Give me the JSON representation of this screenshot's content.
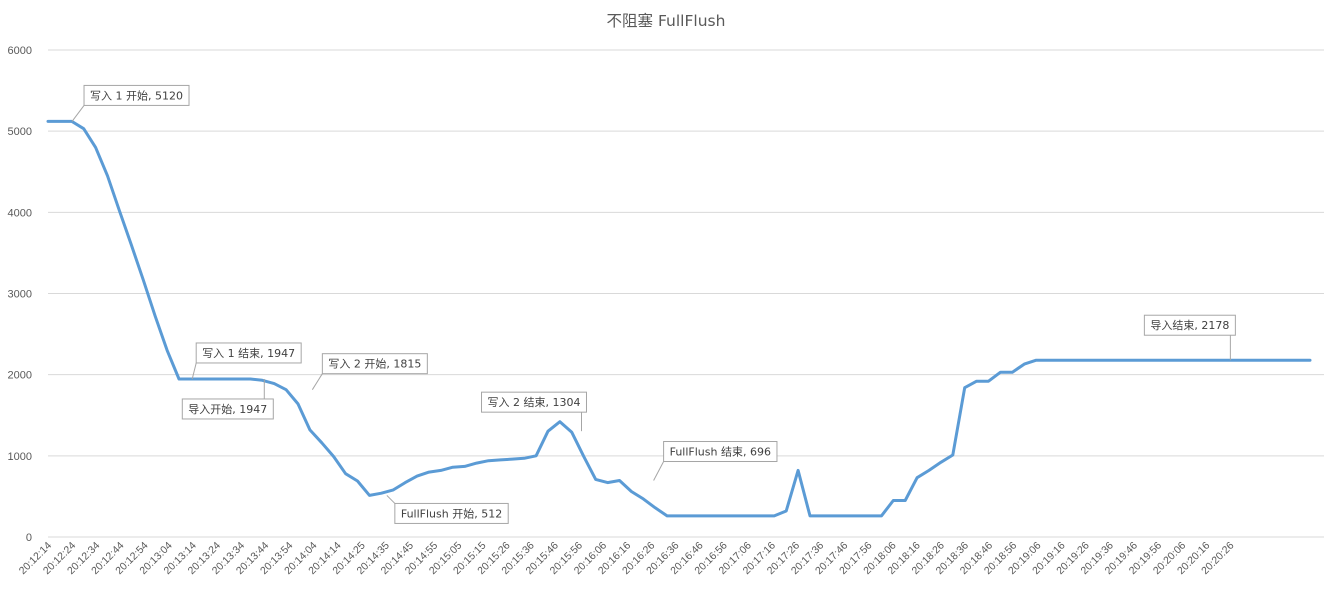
{
  "chart_data": {
    "type": "line",
    "title": "不阻塞 FullFlush",
    "xlabel": "",
    "ylabel": "",
    "ylim": [
      0,
      6000
    ],
    "yticks": [
      "0",
      "1000",
      "2000",
      "3000",
      "4000",
      "5000",
      "6000"
    ],
    "grid": true,
    "legend": "none",
    "x_tick_labels": [
      "20:12:14",
      "20:12:24",
      "20:12:34",
      "20:12:44",
      "20:12:54",
      "20:13:04",
      "20:13:14",
      "20:13:24",
      "20:13:34",
      "20:13:44",
      "20:13:54",
      "20:14:04",
      "20:14:14",
      "20:14:25",
      "20:14:35",
      "20:14:45",
      "20:14:55",
      "20:15:05",
      "20:15:15",
      "20:15:26",
      "20:15:36",
      "20:15:46",
      "20:15:56",
      "20:16:06",
      "20:16:16",
      "20:16:26",
      "20:16:36",
      "20:16:46",
      "20:16:56",
      "20:17:06",
      "20:17:16",
      "20:17:26",
      "20:17:36",
      "20:17:46",
      "20:17:56",
      "20:18:06",
      "20:18:16",
      "20:18:26",
      "20:18:36",
      "20:18:46",
      "20:18:56",
      "20:19:06",
      "20:19:16",
      "20:19:26",
      "20:19:36",
      "20:19:46",
      "20:19:56",
      "20:20:06",
      "20:20:16",
      "20:20:26"
    ],
    "series": [
      {
        "color": "#5b9bd5",
        "values": [
          5120,
          5120,
          5120,
          5030,
          4800,
          4450,
          4020,
          3600,
          3170,
          2720,
          2300,
          1947,
          1947,
          1947,
          1947,
          1947,
          1947,
          1947,
          1930,
          1890,
          1815,
          1640,
          1320,
          1160,
          990,
          780,
          690,
          512,
          540,
          580,
          670,
          750,
          800,
          820,
          860,
          870,
          910,
          940,
          950,
          960,
          970,
          1000,
          1304,
          1420,
          1290,
          990,
          710,
          670,
          696,
          560,
          470,
          360,
          260,
          260,
          260,
          260,
          260,
          260,
          260,
          260,
          260,
          260,
          320,
          820,
          260,
          260,
          260,
          260,
          260,
          260,
          260,
          450,
          450,
          730,
          820,
          920,
          1010,
          1840,
          1920,
          1920,
          2030,
          2030,
          2130,
          2178,
          2178,
          2178,
          2178,
          2178,
          2178,
          2178,
          2178,
          2178,
          2178,
          2178,
          2178,
          2178,
          2178,
          2178,
          2178,
          2178,
          2178,
          2178,
          2178,
          2178,
          2178,
          2178,
          2178
        ]
      }
    ],
    "annotations": [
      {
        "text": "写入 1 开始, 5120",
        "x": "20:12:24",
        "y": 5120
      },
      {
        "text": "写入 1 结束, 1947",
        "x": "20:13:14",
        "y": 1947
      },
      {
        "text": "导入开始, 1947",
        "x": "20:13:44",
        "y": 1947
      },
      {
        "text": "写入 2 开始, 1815",
        "x": "20:14:04",
        "y": 1815
      },
      {
        "text": "FullFlush 开始, 512",
        "x": "20:14:35",
        "y": 512
      },
      {
        "text": "写入 2 结束, 1304",
        "x": "20:15:56",
        "y": 1304
      },
      {
        "text": "FullFlush 结束, 696",
        "x": "20:16:26",
        "y": 696
      },
      {
        "text": "导入结束, 2178",
        "x": "20:20:26",
        "y": 2178
      }
    ]
  }
}
